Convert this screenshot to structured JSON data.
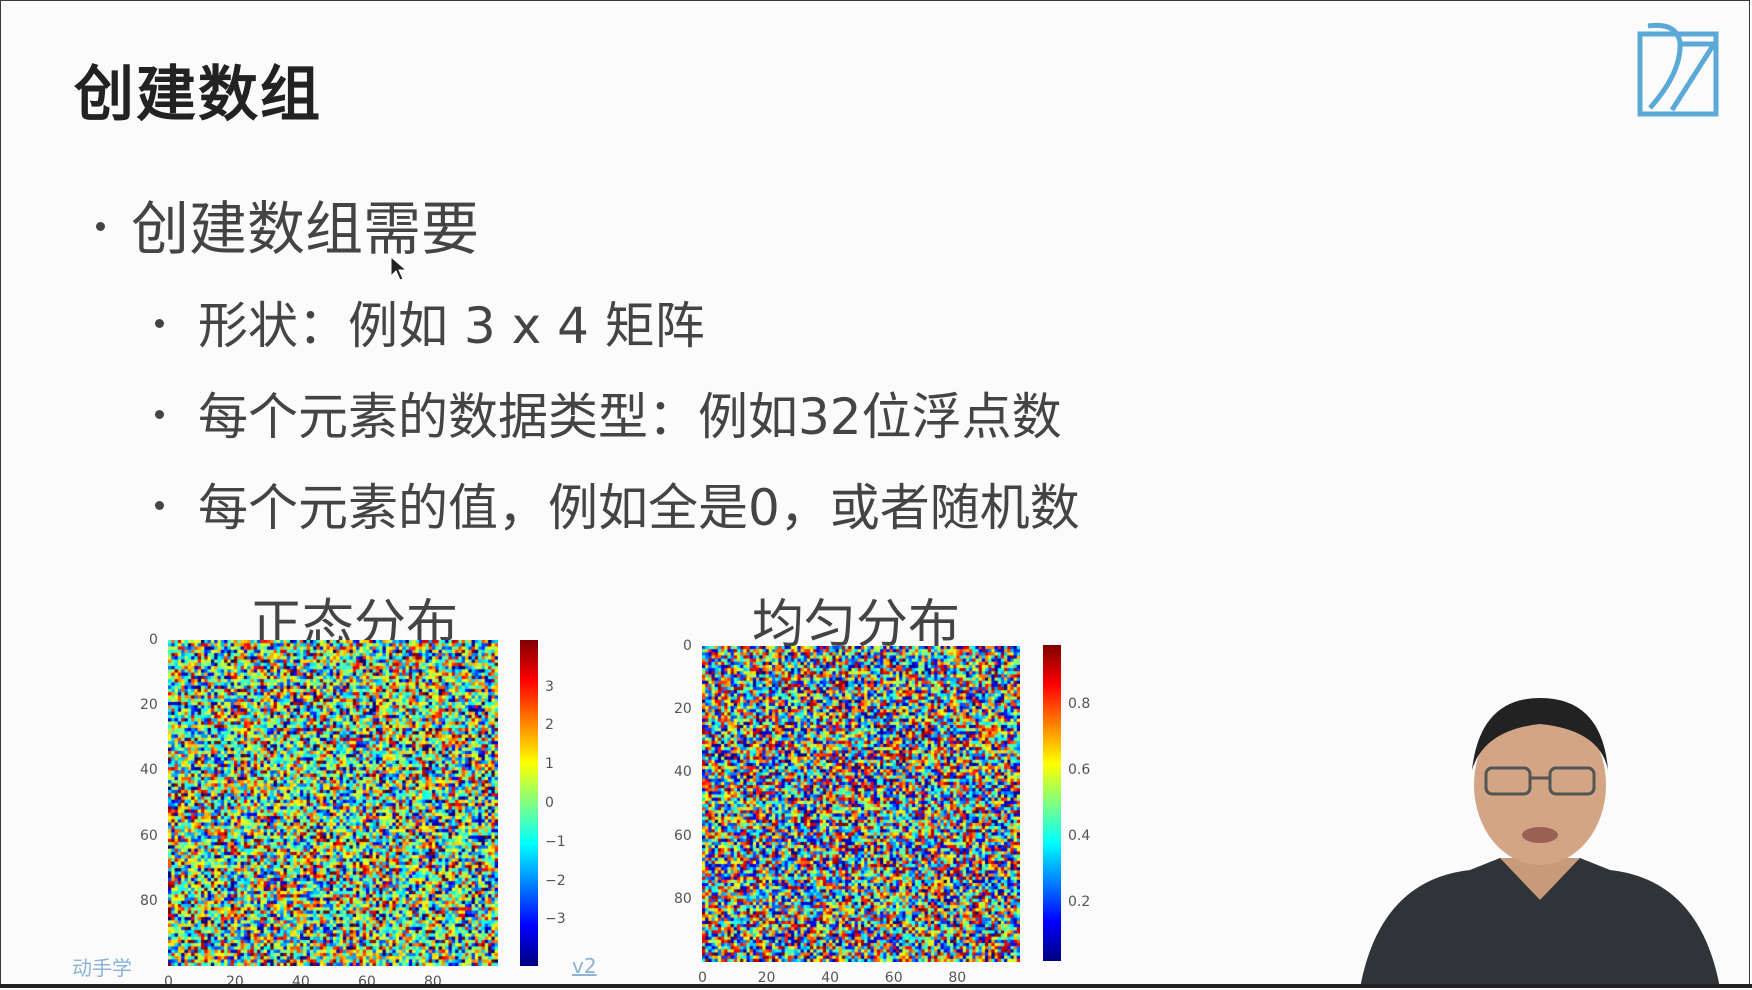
{
  "slide": {
    "title": "创建数组",
    "bullet_main": "创建数组需要",
    "sub_bullets": [
      "形状：例如 3 x 4 矩阵",
      "每个元素的数据类型：例如32位浮点数",
      "每个元素的值，例如全是0，或者随机数"
    ],
    "brand_left": "动手学",
    "brand_right": "v2"
  },
  "chart_data": [
    {
      "type": "heatmap",
      "title": "正态分布",
      "y_ticks": [
        "0",
        "20",
        "40",
        "60",
        "80"
      ],
      "x_ticks": [
        "0",
        "20",
        "40",
        "60",
        "80"
      ],
      "colorbar_ticks": [
        "3",
        "2",
        "1",
        "0",
        "−1",
        "−2",
        "−3"
      ],
      "colormap": "jet",
      "distribution": "normal"
    },
    {
      "type": "heatmap",
      "title": "均匀分布",
      "y_ticks": [
        "0",
        "20",
        "40",
        "60",
        "80"
      ],
      "x_ticks": [
        "0",
        "20",
        "40",
        "60",
        "80"
      ],
      "colorbar_ticks": [
        "0.8",
        "0.6",
        "0.4",
        "0.2"
      ],
      "colormap": "jet",
      "distribution": "uniform"
    }
  ],
  "colors": {
    "logo": "#5aa9d6",
    "background": "#fbfbfb"
  }
}
